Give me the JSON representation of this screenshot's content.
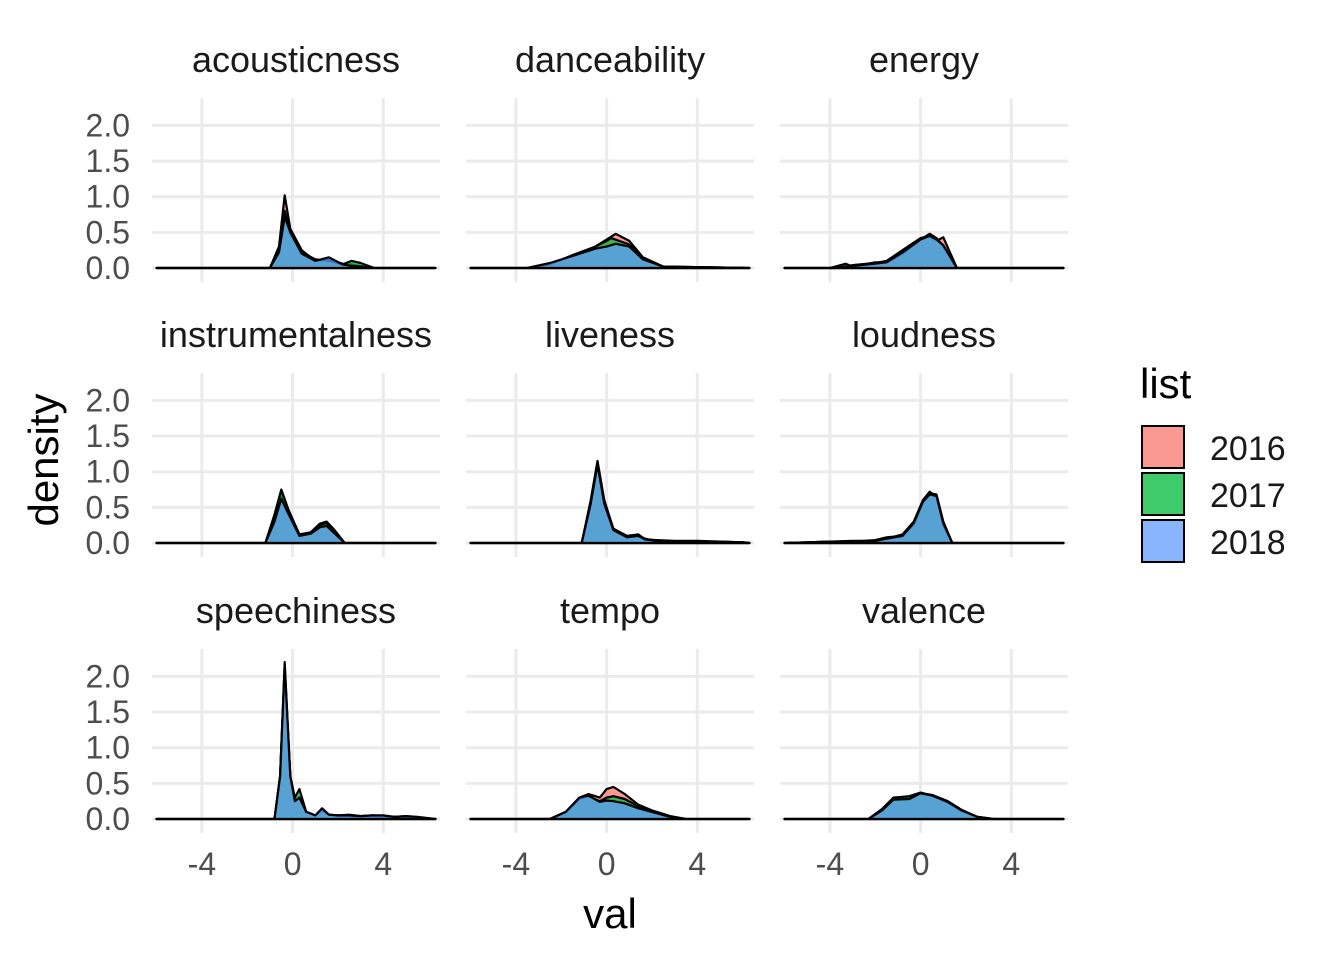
{
  "chart_data": {
    "type": "area",
    "subtype": "faceted density",
    "xlabel": "val",
    "ylabel": "density",
    "x_ticks": [
      -4,
      0,
      4
    ],
    "y_ticks": [
      "0.0",
      "0.5",
      "1.0",
      "1.5",
      "2.0"
    ],
    "xlim": [
      -6.2,
      6.5
    ],
    "ylim": [
      0,
      2.3
    ],
    "grid": true,
    "legend": {
      "title": "list",
      "position": "right",
      "entries": [
        {
          "label": "2016",
          "color": "#F8766D"
        },
        {
          "label": "2017",
          "color": "#00BA38"
        },
        {
          "label": "2018",
          "color": "#619CFF"
        }
      ]
    },
    "panels": [
      {
        "name": "acousticness",
        "series": [
          {
            "name": "2016",
            "x": [
              -6,
              -1.0,
              -0.6,
              -0.35,
              -0.1,
              0.4,
              1.0,
              1.6,
              2.2,
              2.6,
              3.0,
              3.6,
              6.3
            ],
            "y": [
              0,
              0,
              0.3,
              1.02,
              0.55,
              0.25,
              0.1,
              0.12,
              0.06,
              0.05,
              0.03,
              0,
              0
            ]
          },
          {
            "name": "2017",
            "x": [
              -6,
              -1.0,
              -0.6,
              -0.35,
              -0.1,
              0.4,
              1.0,
              1.6,
              2.2,
              2.6,
              3.0,
              3.6,
              6.3
            ],
            "y": [
              0,
              0,
              0.25,
              0.8,
              0.5,
              0.22,
              0.12,
              0.1,
              0.05,
              0.1,
              0.07,
              0,
              0
            ]
          },
          {
            "name": "2018",
            "x": [
              -6,
              -1.0,
              -0.6,
              -0.35,
              -0.1,
              0.4,
              1.0,
              1.6,
              2.2,
              2.6,
              3.0,
              3.6,
              6.3
            ],
            "y": [
              0,
              0,
              0.22,
              0.72,
              0.5,
              0.2,
              0.1,
              0.15,
              0.05,
              0.03,
              0.02,
              0,
              0
            ]
          }
        ]
      },
      {
        "name": "danceability",
        "series": [
          {
            "name": "2016",
            "x": [
              -6,
              -3.5,
              -2.5,
              -1.5,
              -0.5,
              0.0,
              0.4,
              1.0,
              1.6,
              2.5,
              6.3
            ],
            "y": [
              0,
              0,
              0.05,
              0.18,
              0.3,
              0.4,
              0.48,
              0.38,
              0.15,
              0.02,
              0
            ]
          },
          {
            "name": "2017",
            "x": [
              -6,
              -3.5,
              -2.5,
              -1.5,
              -0.5,
              0.0,
              0.2,
              1.0,
              1.6,
              2.5,
              6.3
            ],
            "y": [
              0,
              0,
              0.05,
              0.18,
              0.3,
              0.38,
              0.42,
              0.33,
              0.14,
              0.02,
              0
            ]
          },
          {
            "name": "2018",
            "x": [
              -6,
              -3.5,
              -2.5,
              -1.5,
              -0.5,
              0.0,
              0.4,
              1.0,
              1.6,
              2.5,
              6.3
            ],
            "y": [
              0,
              0,
              0.07,
              0.17,
              0.27,
              0.3,
              0.34,
              0.3,
              0.12,
              0.02,
              0
            ]
          }
        ]
      },
      {
        "name": "energy",
        "series": [
          {
            "name": "2016",
            "x": [
              -6,
              -4.0,
              -3.3,
              -3.0,
              -2.0,
              -1.5,
              -0.8,
              0.0,
              0.4,
              0.7,
              1.0,
              1.6,
              6.3
            ],
            "y": [
              0,
              0,
              0.02,
              0.04,
              0.07,
              0.1,
              0.25,
              0.42,
              0.45,
              0.38,
              0.43,
              0,
              0
            ]
          },
          {
            "name": "2017",
            "x": [
              -6,
              -4.0,
              -3.3,
              -3.0,
              -2.0,
              -1.5,
              -0.8,
              0.0,
              0.4,
              0.7,
              1.0,
              1.6,
              6.3
            ],
            "y": [
              0,
              0,
              0.06,
              0.02,
              0.08,
              0.08,
              0.2,
              0.4,
              0.48,
              0.42,
              0.3,
              0,
              0
            ]
          },
          {
            "name": "2018",
            "x": [
              -6,
              -4.0,
              -3.3,
              -3.0,
              -2.0,
              -1.5,
              -0.8,
              0.0,
              0.4,
              0.7,
              1.0,
              1.6,
              6.3
            ],
            "y": [
              0,
              0,
              0.02,
              0.03,
              0.06,
              0.08,
              0.22,
              0.4,
              0.45,
              0.4,
              0.32,
              0,
              0
            ]
          }
        ]
      },
      {
        "name": "instrumentalness",
        "series": [
          {
            "name": "2016",
            "x": [
              -6,
              -1.2,
              -0.8,
              -0.5,
              -0.2,
              0.3,
              0.8,
              1.2,
              1.5,
              1.8,
              2.3,
              6.3
            ],
            "y": [
              0,
              0,
              0.35,
              0.7,
              0.45,
              0.12,
              0.15,
              0.27,
              0.3,
              0.2,
              0,
              0
            ]
          },
          {
            "name": "2017",
            "x": [
              -6,
              -1.2,
              -0.8,
              -0.5,
              -0.2,
              0.3,
              0.8,
              1.2,
              1.5,
              1.8,
              2.3,
              6.3
            ],
            "y": [
              0,
              0,
              0.4,
              0.75,
              0.48,
              0.12,
              0.14,
              0.25,
              0.28,
              0.18,
              0,
              0
            ]
          },
          {
            "name": "2018",
            "x": [
              -6,
              -1.2,
              -0.8,
              -0.5,
              -0.2,
              0.3,
              0.8,
              1.2,
              1.5,
              1.8,
              2.3,
              6.3
            ],
            "y": [
              0,
              0,
              0.3,
              0.62,
              0.42,
              0.1,
              0.13,
              0.22,
              0.24,
              0.15,
              0,
              0
            ]
          }
        ]
      },
      {
        "name": "liveness",
        "series": [
          {
            "name": "2016",
            "x": [
              -6,
              -1.1,
              -0.7,
              -0.4,
              -0.1,
              0.3,
              0.9,
              1.4,
              1.7,
              2.2,
              3.0,
              4.0,
              5.0,
              6.0,
              6.3
            ],
            "y": [
              0,
              0,
              0.6,
              1.15,
              0.6,
              0.2,
              0.1,
              0.12,
              0.05,
              0.04,
              0.03,
              0.03,
              0.02,
              0.01,
              0
            ]
          },
          {
            "name": "2017",
            "x": [
              -6,
              -1.1,
              -0.7,
              -0.4,
              -0.1,
              0.3,
              0.9,
              1.4,
              1.7,
              2.2,
              3.0,
              4.0,
              5.0,
              6.0,
              6.3
            ],
            "y": [
              0,
              0,
              0.55,
              1.12,
              0.55,
              0.2,
              0.08,
              0.1,
              0.06,
              0.03,
              0.02,
              0.02,
              0.02,
              0.01,
              0
            ]
          },
          {
            "name": "2018",
            "x": [
              -6,
              -1.1,
              -0.7,
              -0.4,
              -0.1,
              0.3,
              0.9,
              1.4,
              1.7,
              2.2,
              3.0,
              4.0,
              5.0,
              6.0,
              6.3
            ],
            "y": [
              0,
              0,
              0.55,
              1.1,
              0.55,
              0.18,
              0.08,
              0.1,
              0.05,
              0.03,
              0.02,
              0.02,
              0.01,
              0.01,
              0
            ]
          }
        ]
      },
      {
        "name": "loudness",
        "series": [
          {
            "name": "2016",
            "x": [
              -6,
              -5.0,
              -4.0,
              -3.0,
              -2.0,
              -1.5,
              -0.8,
              -0.3,
              0.1,
              0.4,
              0.7,
              1.0,
              1.4,
              6.3
            ],
            "y": [
              0,
              0.01,
              0.02,
              0.02,
              0.04,
              0.08,
              0.1,
              0.25,
              0.55,
              0.7,
              0.68,
              0.3,
              0,
              0
            ]
          },
          {
            "name": "2017",
            "x": [
              -6,
              -5.0,
              -4.0,
              -3.0,
              -2.0,
              -1.5,
              -0.8,
              -0.3,
              0.1,
              0.4,
              0.7,
              1.0,
              1.4,
              6.3
            ],
            "y": [
              0,
              0.01,
              0.02,
              0.03,
              0.03,
              0.06,
              0.12,
              0.3,
              0.6,
              0.72,
              0.65,
              0.25,
              0,
              0
            ]
          },
          {
            "name": "2018",
            "x": [
              -6,
              -5.0,
              -4.0,
              -3.0,
              -2.0,
              -1.5,
              -0.8,
              -0.3,
              0.1,
              0.4,
              0.7,
              1.0,
              1.4,
              6.3
            ],
            "y": [
              0,
              0.01,
              0.02,
              0.02,
              0.03,
              0.06,
              0.1,
              0.28,
              0.58,
              0.68,
              0.66,
              0.28,
              0,
              0
            ]
          }
        ]
      },
      {
        "name": "speechiness",
        "series": [
          {
            "name": "2016",
            "x": [
              -6,
              -0.8,
              -0.55,
              -0.35,
              -0.1,
              0.1,
              0.3,
              0.6,
              1.0,
              1.3,
              1.6,
              2.0,
              2.5,
              3.0,
              3.5,
              4.0,
              4.5,
              5.0,
              5.5,
              6.3
            ],
            "y": [
              0,
              0,
              0.6,
              2.15,
              0.6,
              0.25,
              0.3,
              0.1,
              0.05,
              0.12,
              0.06,
              0.05,
              0.06,
              0.04,
              0.05,
              0.04,
              0.03,
              0.04,
              0.02,
              0
            ]
          },
          {
            "name": "2017",
            "x": [
              -6,
              -0.8,
              -0.55,
              -0.35,
              -0.1,
              0.1,
              0.3,
              0.6,
              1.0,
              1.3,
              1.6,
              2.0,
              2.5,
              3.0,
              3.5,
              4.0,
              4.5,
              5.0,
              5.5,
              6.3
            ],
            "y": [
              0,
              0,
              0.6,
              2.1,
              0.6,
              0.3,
              0.42,
              0.1,
              0.05,
              0.12,
              0.06,
              0.04,
              0.04,
              0.03,
              0.04,
              0.03,
              0.03,
              0.02,
              0.02,
              0
            ]
          },
          {
            "name": "2018",
            "x": [
              -6,
              -0.8,
              -0.55,
              -0.35,
              -0.1,
              0.1,
              0.3,
              0.6,
              1.0,
              1.3,
              1.6,
              2.0,
              2.5,
              3.0,
              3.5,
              4.0,
              4.5,
              5.0,
              5.5,
              6.3
            ],
            "y": [
              0,
              0,
              0.6,
              2.2,
              0.6,
              0.25,
              0.3,
              0.1,
              0.05,
              0.15,
              0.06,
              0.05,
              0.05,
              0.04,
              0.05,
              0.05,
              0.03,
              0.04,
              0.03,
              0
            ]
          }
        ]
      },
      {
        "name": "tempo",
        "series": [
          {
            "name": "2016",
            "x": [
              -6,
              -2.5,
              -1.8,
              -1.2,
              -0.8,
              -0.3,
              0.0,
              0.3,
              0.8,
              1.4,
              2.0,
              2.8,
              3.5,
              6.3
            ],
            "y": [
              0,
              0,
              0.1,
              0.3,
              0.35,
              0.3,
              0.42,
              0.45,
              0.35,
              0.2,
              0.12,
              0.04,
              0,
              0
            ]
          },
          {
            "name": "2017",
            "x": [
              -6,
              -2.5,
              -1.8,
              -1.2,
              -0.8,
              -0.3,
              0.0,
              0.3,
              0.8,
              1.4,
              2.0,
              2.8,
              3.5,
              6.3
            ],
            "y": [
              0,
              0,
              0.1,
              0.28,
              0.32,
              0.25,
              0.3,
              0.32,
              0.28,
              0.18,
              0.1,
              0.03,
              0,
              0
            ]
          },
          {
            "name": "2018",
            "x": [
              -6,
              -2.5,
              -1.8,
              -1.2,
              -0.8,
              -0.3,
              0.0,
              0.3,
              0.8,
              1.4,
              2.0,
              2.8,
              3.5,
              6.3
            ],
            "y": [
              0,
              0,
              0.1,
              0.3,
              0.33,
              0.24,
              0.26,
              0.25,
              0.22,
              0.15,
              0.1,
              0.03,
              0,
              0
            ]
          }
        ]
      },
      {
        "name": "valence",
        "series": [
          {
            "name": "2016",
            "x": [
              -6,
              -2.3,
              -1.7,
              -1.2,
              -0.5,
              0.0,
              0.5,
              1.2,
              1.8,
              2.5,
              3.2,
              6.3
            ],
            "y": [
              0,
              0,
              0.12,
              0.28,
              0.3,
              0.36,
              0.34,
              0.25,
              0.13,
              0.03,
              0,
              0
            ]
          },
          {
            "name": "2017",
            "x": [
              -6,
              -2.3,
              -1.7,
              -1.2,
              -0.5,
              0.0,
              0.5,
              1.2,
              1.8,
              2.5,
              3.2,
              6.3
            ],
            "y": [
              0,
              0,
              0.14,
              0.3,
              0.32,
              0.37,
              0.33,
              0.23,
              0.12,
              0.03,
              0,
              0
            ]
          },
          {
            "name": "2018",
            "x": [
              -6,
              -2.3,
              -1.7,
              -1.2,
              -0.5,
              0.0,
              0.5,
              1.2,
              1.8,
              2.5,
              3.2,
              6.3
            ],
            "y": [
              0,
              0,
              0.12,
              0.27,
              0.28,
              0.36,
              0.33,
              0.24,
              0.12,
              0.03,
              0,
              0
            ]
          }
        ]
      }
    ]
  }
}
